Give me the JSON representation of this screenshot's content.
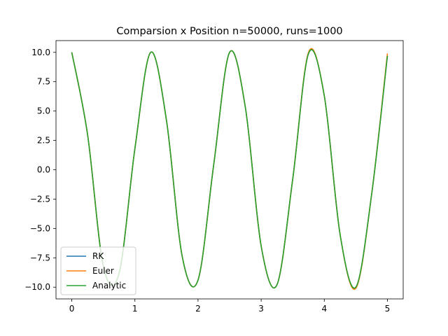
{
  "chart_data": {
    "type": "line",
    "title": "Comparsion x Position n=50000, runs=1000",
    "xlabel": "",
    "ylabel": "",
    "xlim": [
      -0.25,
      5.25
    ],
    "ylim": [
      -11.0,
      11.0
    ],
    "x_ticks": [
      0,
      1,
      2,
      3,
      4,
      5
    ],
    "x_tick_labels": [
      "0",
      "1",
      "2",
      "3",
      "4",
      "5"
    ],
    "y_ticks": [
      10.0,
      7.5,
      5.0,
      2.5,
      0.0,
      -2.5,
      -5.0,
      -7.5,
      -10.0
    ],
    "y_tick_labels": [
      "10.0",
      "7.5",
      "5.0",
      "2.5",
      "0.0",
      "−2.5",
      "−5.0",
      "−7.5",
      "−10.0"
    ],
    "grid": false,
    "legend_position": "lower-left",
    "series": [
      {
        "name": "RK",
        "color": "#1f77b4",
        "x": [
          0,
          0.25,
          0.5,
          0.75,
          1.0,
          1.25,
          1.5,
          1.75,
          2.0,
          2.25,
          2.5,
          2.75,
          3.0,
          3.25,
          3.5,
          3.75,
          4.0,
          4.25,
          4.5,
          4.75,
          5.0
        ],
        "y": [
          10.0,
          3.0,
          -8.2,
          -8.8,
          1.8,
          10.0,
          4.2,
          -7.4,
          -9.4,
          0.5,
          10.0,
          5.3,
          -6.5,
          -9.8,
          -0.8,
          9.9,
          6.3,
          -5.5,
          -10.0,
          -2.1,
          9.7
        ]
      },
      {
        "name": "Euler",
        "color": "#ff7f0e",
        "x": [
          0,
          0.25,
          0.5,
          0.75,
          1.0,
          1.25,
          1.5,
          1.75,
          2.0,
          2.25,
          2.5,
          2.75,
          3.0,
          3.25,
          3.5,
          3.75,
          4.0,
          4.25,
          4.5,
          4.75,
          5.0
        ],
        "y": [
          10.0,
          3.0,
          -8.2,
          -8.8,
          1.8,
          10.0,
          4.2,
          -7.4,
          -9.4,
          0.5,
          10.0,
          5.3,
          -6.5,
          -9.8,
          -0.8,
          10.0,
          6.3,
          -5.5,
          -10.1,
          -2.1,
          9.9
        ]
      },
      {
        "name": "Analytic",
        "color": "#2ca02c",
        "x": [
          0,
          0.25,
          0.5,
          0.75,
          1.0,
          1.25,
          1.5,
          1.75,
          2.0,
          2.25,
          2.5,
          2.75,
          3.0,
          3.25,
          3.5,
          3.75,
          4.0,
          4.25,
          4.5,
          4.75,
          5.0
        ],
        "y": [
          10.0,
          3.0,
          -8.2,
          -8.8,
          1.8,
          10.0,
          4.2,
          -7.4,
          -9.4,
          0.5,
          10.0,
          5.3,
          -6.5,
          -9.8,
          -0.8,
          9.9,
          6.3,
          -5.5,
          -10.0,
          -2.1,
          9.7
        ]
      }
    ]
  }
}
